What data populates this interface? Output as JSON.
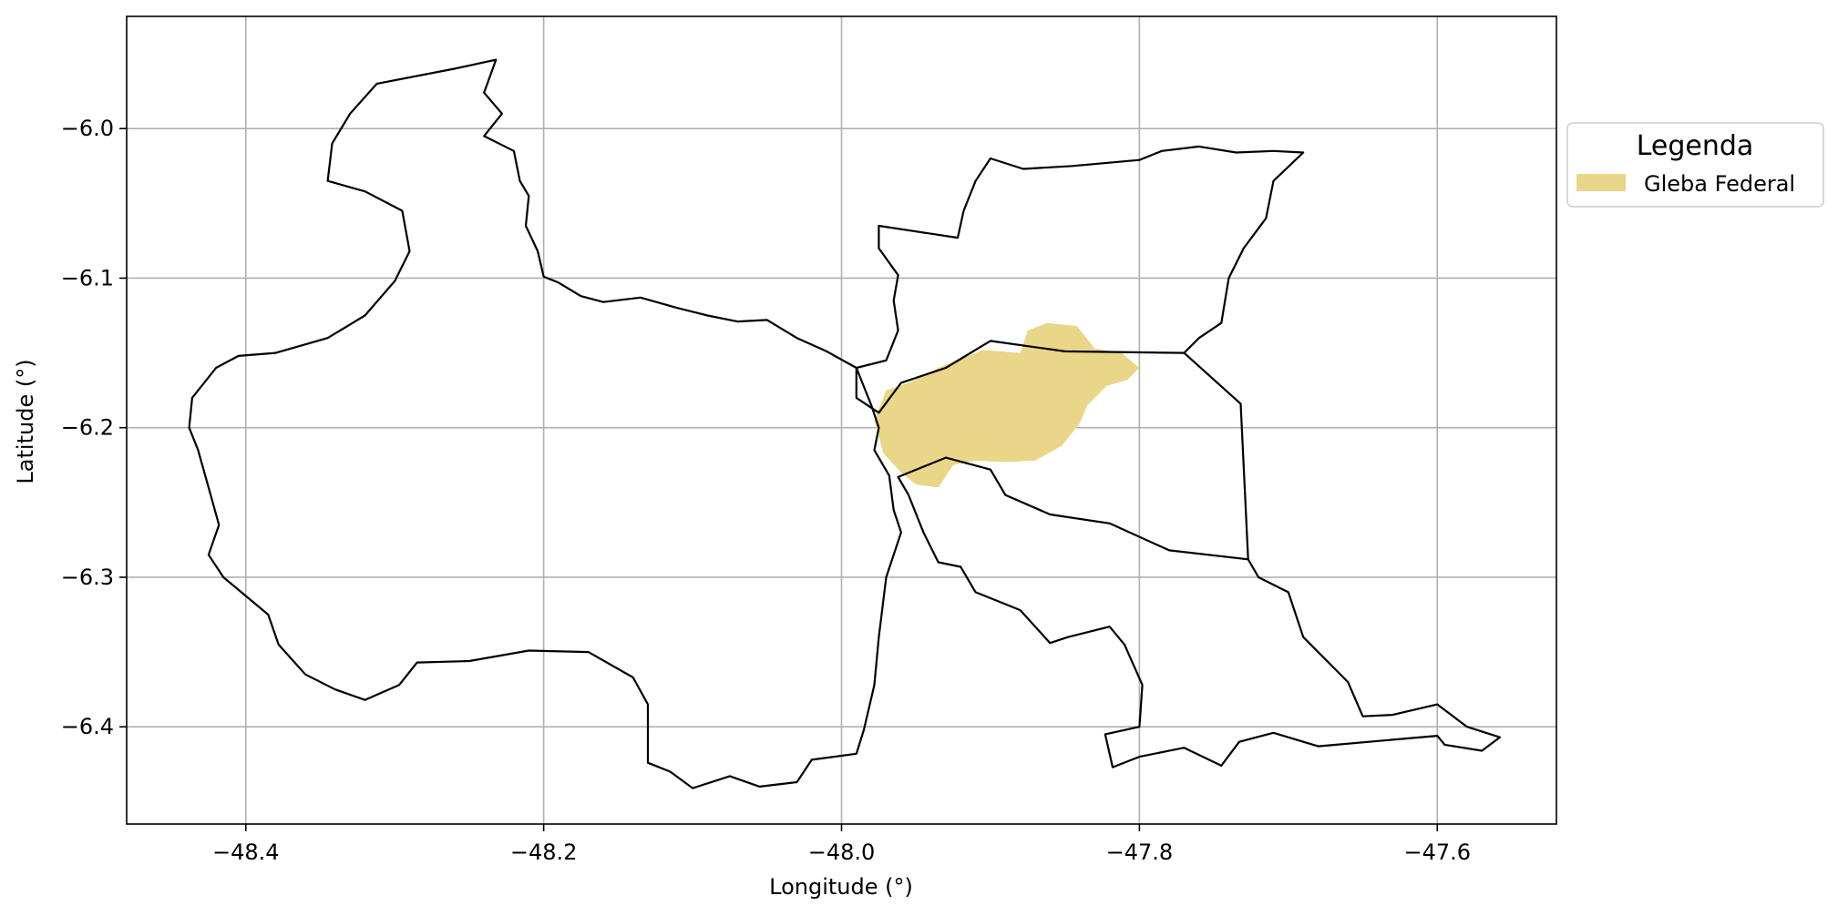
{
  "chart_data": {
    "type": "map",
    "xlabel": "Longitude (°)",
    "ylabel": "Latitude (°)",
    "xlim": [
      -48.48,
      -47.52
    ],
    "ylim": [
      -6.465,
      -5.925
    ],
    "x_ticks": [
      -48.4,
      -48.2,
      -48.0,
      -47.8,
      -47.6
    ],
    "x_tick_labels": [
      "−48.4",
      "−48.2",
      "−48.0",
      "−47.8",
      "−47.6"
    ],
    "y_ticks": [
      -6.0,
      -6.1,
      -6.2,
      -6.3,
      -6.4
    ],
    "y_tick_labels": [
      "−6.0",
      "−6.1",
      "−6.2",
      "−6.3",
      "−6.4"
    ],
    "grid": true,
    "legend": {
      "title": "Legenda",
      "placement": "outside-right",
      "entries": [
        {
          "label": "Gleba Federal",
          "color": "#ead689"
        }
      ]
    },
    "boundary_color": "#000000",
    "polygons": [
      {
        "name": "west-region-boundary",
        "fill": "none",
        "coords": [
          [
            -48.232,
            -5.954
          ],
          [
            -48.24,
            -5.976
          ],
          [
            -48.228,
            -5.99
          ],
          [
            -48.24,
            -6.005
          ],
          [
            -48.22,
            -6.015
          ],
          [
            -48.216,
            -6.035
          ],
          [
            -48.21,
            -6.045
          ],
          [
            -48.212,
            -6.065
          ],
          [
            -48.204,
            -6.082
          ],
          [
            -48.2,
            -6.099
          ],
          [
            -48.19,
            -6.103
          ],
          [
            -48.175,
            -6.112
          ],
          [
            -48.16,
            -6.116
          ],
          [
            -48.135,
            -6.113
          ],
          [
            -48.11,
            -6.12
          ],
          [
            -48.09,
            -6.125
          ],
          [
            -48.07,
            -6.129
          ],
          [
            -48.05,
            -6.128
          ],
          [
            -48.03,
            -6.14
          ],
          [
            -48.01,
            -6.149
          ],
          [
            -47.99,
            -6.16
          ],
          [
            -47.98,
            -6.185
          ],
          [
            -47.975,
            -6.2
          ],
          [
            -47.978,
            -6.215
          ],
          [
            -47.968,
            -6.232
          ],
          [
            -47.965,
            -6.255
          ],
          [
            -47.96,
            -6.27
          ],
          [
            -47.97,
            -6.3
          ],
          [
            -47.975,
            -6.34
          ],
          [
            -47.978,
            -6.372
          ],
          [
            -47.985,
            -6.402
          ],
          [
            -47.99,
            -6.418
          ],
          [
            -48.02,
            -6.422
          ],
          [
            -48.03,
            -6.437
          ],
          [
            -48.055,
            -6.44
          ],
          [
            -48.075,
            -6.433
          ],
          [
            -48.1,
            -6.441
          ],
          [
            -48.115,
            -6.43
          ],
          [
            -48.13,
            -6.424
          ],
          [
            -48.13,
            -6.405
          ],
          [
            -48.13,
            -6.385
          ],
          [
            -48.14,
            -6.367
          ],
          [
            -48.17,
            -6.35
          ],
          [
            -48.21,
            -6.349
          ],
          [
            -48.25,
            -6.356
          ],
          [
            -48.285,
            -6.357
          ],
          [
            -48.297,
            -6.372
          ],
          [
            -48.32,
            -6.382
          ],
          [
            -48.34,
            -6.375
          ],
          [
            -48.36,
            -6.365
          ],
          [
            -48.378,
            -6.345
          ],
          [
            -48.385,
            -6.325
          ],
          [
            -48.415,
            -6.3
          ],
          [
            -48.425,
            -6.285
          ],
          [
            -48.418,
            -6.265
          ],
          [
            -48.425,
            -6.24
          ],
          [
            -48.432,
            -6.215
          ],
          [
            -48.438,
            -6.2
          ],
          [
            -48.436,
            -6.18
          ],
          [
            -48.42,
            -6.16
          ],
          [
            -48.405,
            -6.152
          ],
          [
            -48.38,
            -6.15
          ],
          [
            -48.345,
            -6.14
          ],
          [
            -48.32,
            -6.125
          ],
          [
            -48.3,
            -6.102
          ],
          [
            -48.29,
            -6.082
          ],
          [
            -48.295,
            -6.055
          ],
          [
            -48.32,
            -6.042
          ],
          [
            -48.345,
            -6.035
          ],
          [
            -48.342,
            -6.01
          ],
          [
            -48.33,
            -5.99
          ],
          [
            -48.312,
            -5.97
          ],
          [
            -48.26,
            -5.96
          ],
          [
            -48.232,
            -5.954
          ]
        ]
      },
      {
        "name": "north-region-boundary",
        "fill": "none",
        "coords": [
          [
            -47.99,
            -6.16
          ],
          [
            -47.97,
            -6.155
          ],
          [
            -47.962,
            -6.135
          ],
          [
            -47.965,
            -6.115
          ],
          [
            -47.962,
            -6.098
          ],
          [
            -47.975,
            -6.08
          ],
          [
            -47.975,
            -6.065
          ],
          [
            -47.922,
            -6.073
          ],
          [
            -47.918,
            -6.055
          ],
          [
            -47.91,
            -6.035
          ],
          [
            -47.9,
            -6.02
          ],
          [
            -47.878,
            -6.027
          ],
          [
            -47.845,
            -6.025
          ],
          [
            -47.8,
            -6.021
          ],
          [
            -47.785,
            -6.015
          ],
          [
            -47.76,
            -6.012
          ],
          [
            -47.735,
            -6.016
          ],
          [
            -47.71,
            -6.015
          ],
          [
            -47.69,
            -6.016
          ],
          [
            -47.71,
            -6.035
          ],
          [
            -47.715,
            -6.06
          ],
          [
            -47.73,
            -6.08
          ],
          [
            -47.74,
            -6.1
          ],
          [
            -47.745,
            -6.13
          ],
          [
            -47.76,
            -6.14
          ],
          [
            -47.77,
            -6.15
          ],
          [
            -47.85,
            -6.149
          ],
          [
            -47.9,
            -6.142
          ],
          [
            -47.93,
            -6.16
          ],
          [
            -47.96,
            -6.17
          ],
          [
            -47.975,
            -6.19
          ],
          [
            -47.99,
            -6.18
          ],
          [
            -47.99,
            -6.16
          ]
        ]
      },
      {
        "name": "east-region-boundary",
        "fill": "none",
        "coords": [
          [
            -47.77,
            -6.15
          ],
          [
            -47.732,
            -6.184
          ],
          [
            -47.727,
            -6.288
          ],
          [
            -47.72,
            -6.3
          ],
          [
            -47.7,
            -6.31
          ],
          [
            -47.69,
            -6.34
          ],
          [
            -47.66,
            -6.37
          ],
          [
            -47.65,
            -6.393
          ],
          [
            -47.63,
            -6.392
          ],
          [
            -47.6,
            -6.385
          ],
          [
            -47.58,
            -6.4
          ],
          [
            -47.558,
            -6.407
          ],
          [
            -47.57,
            -6.416
          ],
          [
            -47.595,
            -6.412
          ],
          [
            -47.6,
            -6.406
          ],
          [
            -47.68,
            -6.413
          ],
          [
            -47.71,
            -6.404
          ],
          [
            -47.733,
            -6.41
          ],
          [
            -47.745,
            -6.426
          ],
          [
            -47.77,
            -6.414
          ],
          [
            -47.8,
            -6.42
          ],
          [
            -47.818,
            -6.427
          ],
          [
            -47.823,
            -6.405
          ],
          [
            -47.8,
            -6.4
          ],
          [
            -47.798,
            -6.372
          ],
          [
            -47.81,
            -6.345
          ],
          [
            -47.82,
            -6.333
          ],
          [
            -47.848,
            -6.34
          ],
          [
            -47.86,
            -6.344
          ],
          [
            -47.88,
            -6.322
          ],
          [
            -47.89,
            -6.318
          ],
          [
            -47.91,
            -6.31
          ],
          [
            -47.92,
            -6.293
          ],
          [
            -47.935,
            -6.29
          ],
          [
            -47.945,
            -6.27
          ],
          [
            -47.955,
            -6.245
          ],
          [
            -47.962,
            -6.233
          ],
          [
            -47.93,
            -6.22
          ],
          [
            -47.9,
            -6.228
          ],
          [
            -47.89,
            -6.245
          ],
          [
            -47.86,
            -6.258
          ],
          [
            -47.82,
            -6.264
          ],
          [
            -47.78,
            -6.282
          ],
          [
            -47.727,
            -6.288
          ],
          [
            -47.732,
            -6.184
          ],
          [
            -47.77,
            -6.15
          ]
        ]
      },
      {
        "name": "gleba-federal-area",
        "fill": "#ead689",
        "coords": [
          [
            -47.978,
            -6.195
          ],
          [
            -47.97,
            -6.175
          ],
          [
            -47.955,
            -6.17
          ],
          [
            -47.935,
            -6.16
          ],
          [
            -47.905,
            -6.148
          ],
          [
            -47.88,
            -6.15
          ],
          [
            -47.875,
            -6.135
          ],
          [
            -47.862,
            -6.13
          ],
          [
            -47.842,
            -6.132
          ],
          [
            -47.83,
            -6.147
          ],
          [
            -47.812,
            -6.15
          ],
          [
            -47.8,
            -6.16
          ],
          [
            -47.808,
            -6.168
          ],
          [
            -47.822,
            -6.172
          ],
          [
            -47.835,
            -6.185
          ],
          [
            -47.84,
            -6.197
          ],
          [
            -47.852,
            -6.212
          ],
          [
            -47.87,
            -6.222
          ],
          [
            -47.89,
            -6.223
          ],
          [
            -47.91,
            -6.222
          ],
          [
            -47.925,
            -6.225
          ],
          [
            -47.935,
            -6.24
          ],
          [
            -47.95,
            -6.238
          ],
          [
            -47.96,
            -6.23
          ],
          [
            -47.972,
            -6.217
          ],
          [
            -47.978,
            -6.195
          ]
        ]
      }
    ]
  }
}
